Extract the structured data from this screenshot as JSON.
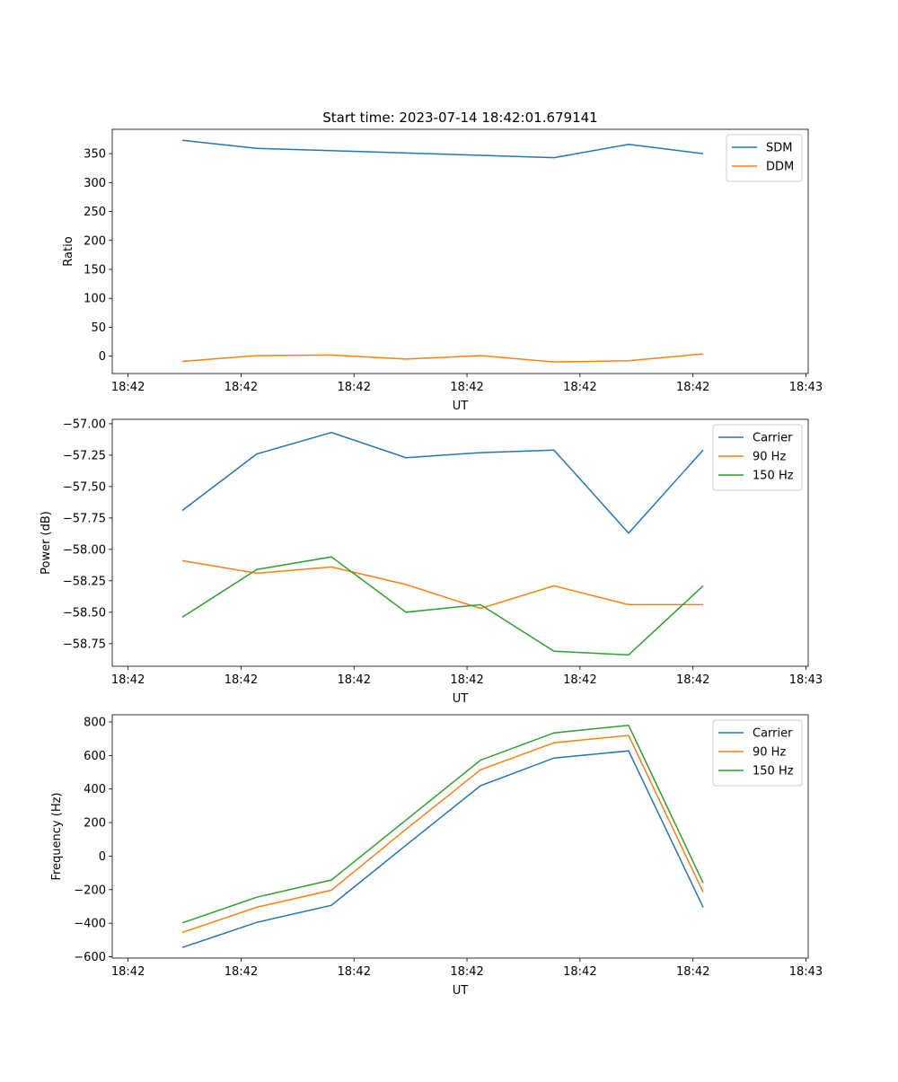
{
  "chart_data": [
    {
      "type": "line",
      "title": "Start time: 2023-07-14 18:42:01.679141",
      "xlabel": "UT",
      "ylabel": "Ratio",
      "x": [
        4.8,
        11.4,
        18.0,
        24.6,
        31.2,
        37.7,
        44.3,
        50.9
      ],
      "xlim": [
        -1.4,
        60.2
      ],
      "xticks": [
        0,
        10,
        20,
        30,
        40,
        50,
        60
      ],
      "xtick_labels": [
        "18:42",
        "18:42",
        "18:42",
        "18:42",
        "18:42",
        "18:42",
        "18:43"
      ],
      "ylim": [
        -30,
        392
      ],
      "yticks": [
        0,
        50,
        100,
        150,
        200,
        250,
        300,
        350
      ],
      "ytick_labels": [
        "0",
        "50",
        "100",
        "150",
        "200",
        "250",
        "300",
        "350"
      ],
      "legend": "top-right",
      "series": [
        {
          "name": "SDM",
          "color": "#1f77b4",
          "values": [
            373,
            359,
            355,
            351,
            347,
            343,
            366,
            350
          ]
        },
        {
          "name": "DDM",
          "color": "#ff7f0e",
          "values": [
            -9,
            1,
            2,
            -5,
            1,
            -10,
            -8,
            4
          ]
        }
      ]
    },
    {
      "type": "line",
      "title": "",
      "xlabel": "UT",
      "ylabel": "Power (dB)",
      "x": [
        4.8,
        11.4,
        18.0,
        24.6,
        31.2,
        37.7,
        44.3,
        50.9
      ],
      "xlim": [
        -1.4,
        60.2
      ],
      "xticks": [
        0,
        10,
        20,
        30,
        40,
        50,
        60
      ],
      "xtick_labels": [
        "18:42",
        "18:42",
        "18:42",
        "18:42",
        "18:42",
        "18:42",
        "18:43"
      ],
      "ylim": [
        -58.93,
        -56.965
      ],
      "yticks": [
        -58.75,
        -58.5,
        -58.25,
        -58.0,
        -57.75,
        -57.5,
        -57.25,
        -57.0
      ],
      "ytick_labels": [
        "−58.75",
        "−58.50",
        "−58.25",
        "−58.00",
        "−57.75",
        "−57.50",
        "−57.25",
        "−57.00"
      ],
      "legend": "top-right",
      "series": [
        {
          "name": "Carrier",
          "color": "#1f77b4",
          "values": [
            -57.69,
            -57.24,
            -57.07,
            -57.27,
            -57.23,
            -57.21,
            -57.87,
            -57.21
          ]
        },
        {
          "name": "90 Hz",
          "color": "#ff7f0e",
          "values": [
            -58.09,
            -58.19,
            -58.14,
            -58.28,
            -58.47,
            -58.29,
            -58.44,
            -58.44
          ]
        },
        {
          "name": "150 Hz",
          "color": "#2ca02c",
          "values": [
            -58.54,
            -58.16,
            -58.06,
            -58.5,
            -58.44,
            -58.81,
            -58.84,
            -58.29
          ]
        }
      ]
    },
    {
      "type": "line",
      "title": "",
      "xlabel": "UT",
      "ylabel": "Frequency (Hz)",
      "x": [
        4.8,
        11.4,
        18.0,
        24.6,
        31.2,
        37.7,
        44.3,
        50.9
      ],
      "xlim": [
        -1.4,
        60.2
      ],
      "xticks": [
        0,
        10,
        20,
        30,
        40,
        50,
        60
      ],
      "xtick_labels": [
        "18:42",
        "18:42",
        "18:42",
        "18:42",
        "18:42",
        "18:42",
        "18:43"
      ],
      "ylim": [
        -608,
        843
      ],
      "yticks": [
        -600,
        -400,
        -200,
        0,
        200,
        400,
        600,
        800
      ],
      "ytick_labels": [
        "−600",
        "−400",
        "−200",
        "0",
        "200",
        "400",
        "600",
        "800"
      ],
      "legend": "top-right",
      "series": [
        {
          "name": "Carrier",
          "color": "#1f77b4",
          "values": [
            -545,
            -395,
            -293,
            65,
            420,
            585,
            628,
            -305
          ]
        },
        {
          "name": "90 Hz",
          "color": "#ff7f0e",
          "values": [
            -455,
            -305,
            -203,
            160,
            515,
            676,
            720,
            -215
          ]
        },
        {
          "name": "150 Hz",
          "color": "#2ca02c",
          "values": [
            -398,
            -245,
            -142,
            215,
            572,
            735,
            780,
            -160
          ]
        }
      ]
    }
  ]
}
